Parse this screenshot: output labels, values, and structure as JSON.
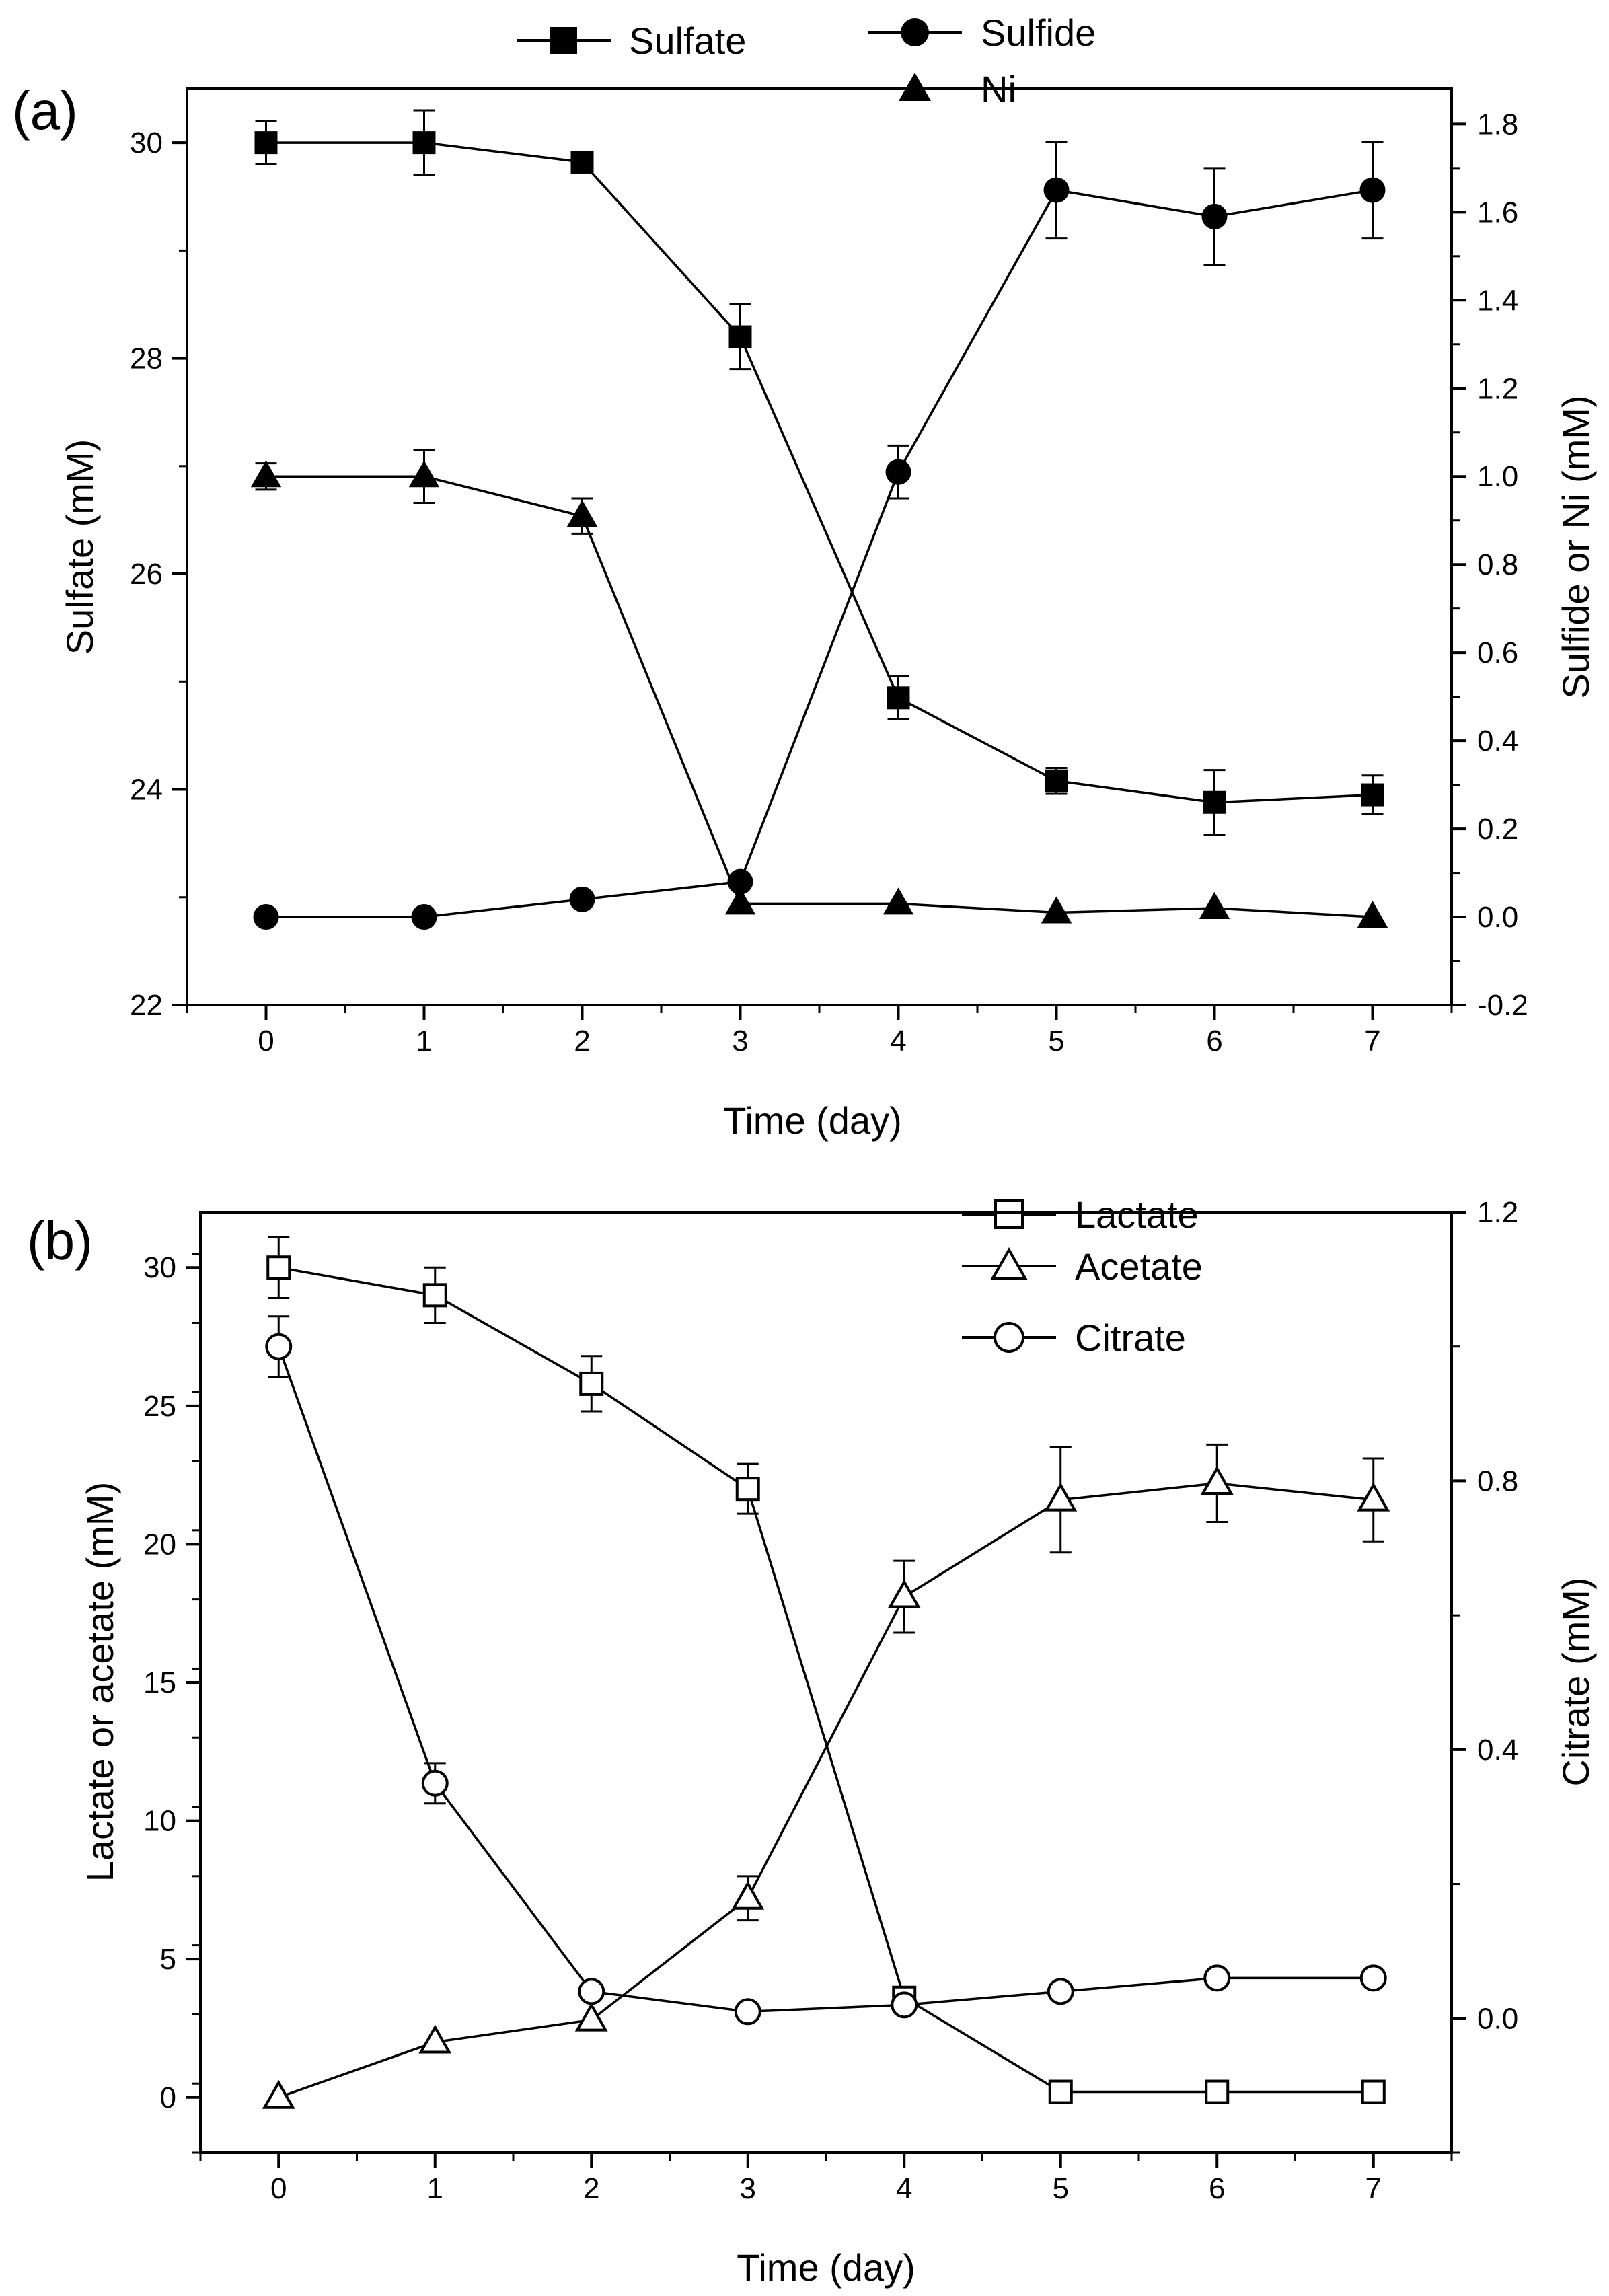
{
  "chart_data": [
    {
      "panel": "(a)",
      "type": "line",
      "xlabel": "Time (day)",
      "ylabel_left": "Sulfate (mM)",
      "ylabel_right": "Sulfide or Ni (mM)",
      "x": [
        0,
        1,
        2,
        3,
        4,
        5,
        6,
        7
      ],
      "x_ticks": [
        "0",
        "1",
        "2",
        "3",
        "4",
        "5",
        "6",
        "7"
      ],
      "xlim": [
        -0.5,
        7.5
      ],
      "ylim_left": [
        22,
        30.5
      ],
      "ylim_right": [
        -0.2,
        1.88
      ],
      "left_ticks": [
        "22",
        "24",
        "26",
        "28",
        "30"
      ],
      "right_ticks": [
        "-0.2",
        "0.0",
        "0.2",
        "0.4",
        "0.6",
        "0.8",
        "1.0",
        "1.2",
        "1.4",
        "1.6",
        "1.8"
      ],
      "series": [
        {
          "name": "Sulfate",
          "axis": "left",
          "marker": "square-filled",
          "values": [
            30.0,
            30.0,
            29.82,
            28.2,
            24.85,
            24.08,
            23.88,
            23.95
          ],
          "errors": [
            0.2,
            0.3,
            0.05,
            0.3,
            0.2,
            0.12,
            0.3,
            0.18
          ]
        },
        {
          "name": "Sulfide",
          "axis": "right",
          "marker": "circle-filled",
          "values": [
            0.0,
            0.0,
            0.04,
            0.08,
            1.01,
            1.65,
            1.59,
            1.65
          ],
          "errors": [
            0,
            0,
            0,
            0,
            0.06,
            0.11,
            0.11,
            0.11
          ]
        },
        {
          "name": "Ni",
          "axis": "right",
          "marker": "triangle-filled",
          "values": [
            1.0,
            1.0,
            0.91,
            0.03,
            0.03,
            0.01,
            0.02,
            0.0
          ],
          "errors": [
            0.03,
            0.06,
            0.04,
            0,
            0,
            0,
            0,
            0
          ]
        }
      ]
    },
    {
      "panel": "(b)",
      "type": "line",
      "xlabel": "Time (day)",
      "ylabel_left": "Lactate or acetate (mM)",
      "ylabel_right": "Citrate (mM)",
      "x": [
        0,
        1,
        2,
        3,
        4,
        5,
        6,
        7
      ],
      "x_ticks": [
        "0",
        "1",
        "2",
        "3",
        "4",
        "5",
        "6",
        "7"
      ],
      "xlim": [
        -0.5,
        7.5
      ],
      "ylim_left": [
        -2,
        32
      ],
      "ylim_right": [
        -0.2,
        1.2
      ],
      "left_ticks": [
        "0",
        "5",
        "10",
        "15",
        "20",
        "25",
        "30"
      ],
      "right_ticks": [
        "0.0",
        "0.4",
        "0.8",
        "1.2"
      ],
      "series": [
        {
          "name": "Lactate",
          "axis": "left",
          "marker": "square-open",
          "values": [
            30.0,
            29.0,
            25.8,
            22.0,
            3.6,
            0.2,
            0.2,
            0.2
          ],
          "errors": [
            1.1,
            1.0,
            1.0,
            0.9,
            0.3,
            0,
            0,
            0
          ]
        },
        {
          "name": "Acetate",
          "axis": "left",
          "marker": "triangle-open",
          "values": [
            0.0,
            2.0,
            2.8,
            7.2,
            18.1,
            21.6,
            22.2,
            21.6
          ],
          "errors": [
            0,
            0,
            0,
            0.8,
            1.3,
            1.9,
            1.4,
            1.5
          ]
        },
        {
          "name": "Citrate",
          "axis": "right",
          "marker": "circle-open",
          "values": [
            1.0,
            0.35,
            0.04,
            0.01,
            0.02,
            0.04,
            0.06,
            0.06
          ],
          "errors": [
            0.045,
            0.03,
            0,
            0,
            0,
            0,
            0,
            0
          ]
        }
      ]
    }
  ]
}
